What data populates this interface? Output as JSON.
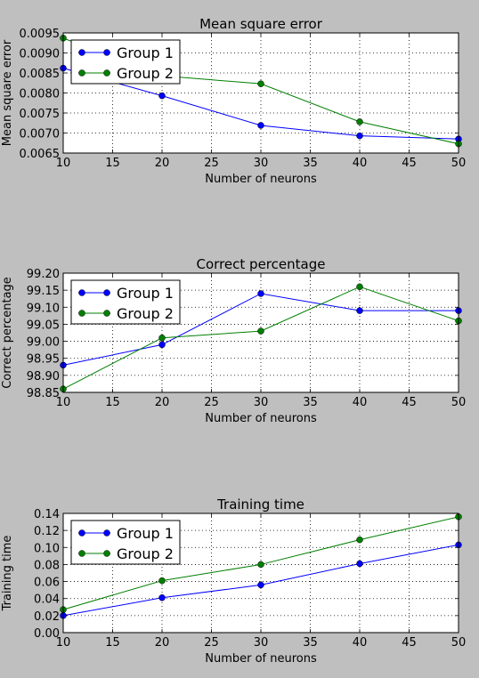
{
  "chart_data": [
    {
      "type": "line",
      "title": "Mean square error",
      "xlabel": "Number of neurons",
      "ylabel": "Mean square error",
      "x": [
        10,
        20,
        30,
        40,
        50
      ],
      "xlim": [
        10,
        50
      ],
      "ylim": [
        0.0065,
        0.0095
      ],
      "xticks": [
        "10",
        "15",
        "20",
        "25",
        "30",
        "35",
        "40",
        "45",
        "50"
      ],
      "yticks": [
        "0.0065",
        "0.0070",
        "0.0075",
        "0.0080",
        "0.0085",
        "0.0090",
        "0.0095"
      ],
      "grid": true,
      "legend_placement": "upper-left",
      "series": [
        {
          "name": "Group 1",
          "color": "#0000ff",
          "values": [
            0.00862,
            0.00793,
            0.00719,
            0.00693,
            0.00685
          ]
        },
        {
          "name": "Group 2",
          "color": "#007f00",
          "values": [
            0.00937,
            0.00843,
            0.00823,
            0.00728,
            0.00673
          ]
        }
      ]
    },
    {
      "type": "line",
      "title": "Correct percentage",
      "xlabel": "Number of neurons",
      "ylabel": "Correct percentage",
      "x": [
        10,
        20,
        30,
        40,
        50
      ],
      "xlim": [
        10,
        50
      ],
      "ylim": [
        98.85,
        99.2
      ],
      "xticks": [
        "10",
        "15",
        "20",
        "25",
        "30",
        "35",
        "40",
        "45",
        "50"
      ],
      "yticks": [
        "98.85",
        "98.90",
        "98.95",
        "99.00",
        "99.05",
        "99.10",
        "99.15",
        "99.20"
      ],
      "grid": true,
      "legend_placement": "upper-left",
      "series": [
        {
          "name": "Group 1",
          "color": "#0000ff",
          "values": [
            98.93,
            98.99,
            99.14,
            99.09,
            99.09
          ]
        },
        {
          "name": "Group 2",
          "color": "#007f00",
          "values": [
            98.86,
            99.01,
            99.03,
            99.16,
            99.06
          ]
        }
      ]
    },
    {
      "type": "line",
      "title": "Training time",
      "xlabel": "Number of neurons",
      "ylabel": "Training time",
      "x": [
        10,
        20,
        30,
        40,
        50
      ],
      "xlim": [
        10,
        50
      ],
      "ylim": [
        0,
        0.14
      ],
      "xticks": [
        "10",
        "15",
        "20",
        "25",
        "30",
        "35",
        "40",
        "45",
        "50"
      ],
      "yticks": [
        "0.00",
        "0.02",
        "0.04",
        "0.06",
        "0.08",
        "0.10",
        "0.12",
        "0.14"
      ],
      "grid": true,
      "legend_placement": "upper-left",
      "series": [
        {
          "name": "Group 1",
          "color": "#0000ff",
          "values": [
            0.02,
            0.041,
            0.056,
            0.081,
            0.103
          ]
        },
        {
          "name": "Group 2",
          "color": "#007f00",
          "values": [
            0.027,
            0.061,
            0.08,
            0.109,
            0.136
          ]
        }
      ]
    }
  ]
}
